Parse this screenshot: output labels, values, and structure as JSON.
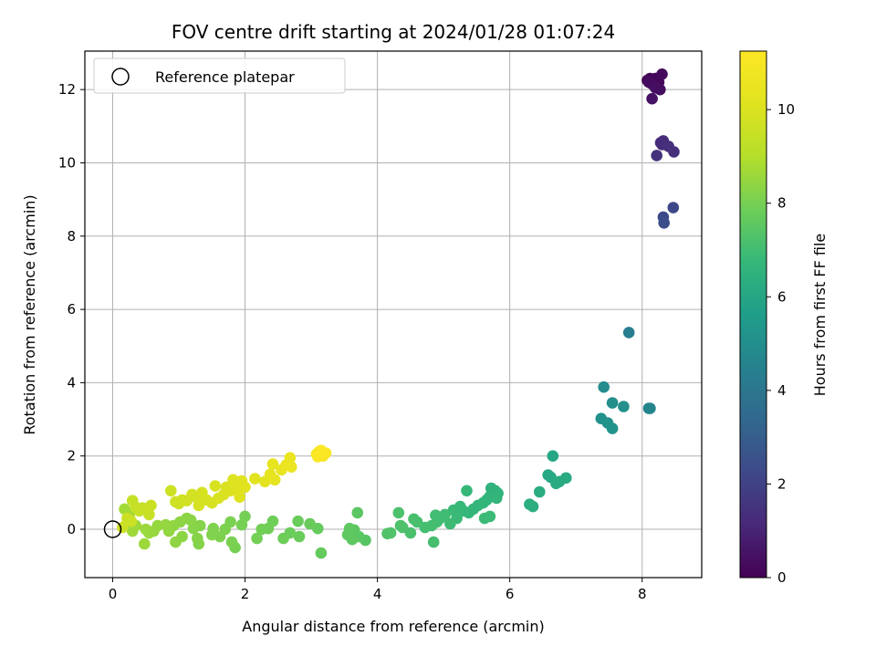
{
  "chart_data": {
    "type": "scatter",
    "title": "FOV centre drift starting at 2024/01/28 01:07:24",
    "xlabel": "Angular distance from reference (arcmin)",
    "ylabel": "Rotation from reference (arcmin)",
    "xlim": [
      -0.42,
      8.9
    ],
    "ylim": [
      -1.32,
      13.05
    ],
    "xticks": [
      0,
      2,
      4,
      6,
      8
    ],
    "yticks": [
      0,
      2,
      4,
      6,
      8,
      10,
      12
    ],
    "grid": true,
    "legend": {
      "placement": "top-left",
      "entries": [
        {
          "label": "Reference platepar",
          "marker": "open-circle"
        }
      ]
    },
    "reference_point": {
      "x": 0,
      "y": 0
    },
    "colorbar": {
      "label": "Hours from first FF file",
      "colormap": "viridis",
      "range": [
        0,
        11.25
      ],
      "ticks": [
        0,
        2,
        4,
        6,
        8,
        10
      ]
    },
    "points": [
      {
        "x": 8.08,
        "y": 12.25,
        "t": 0.0
      },
      {
        "x": 8.12,
        "y": 12.3,
        "t": 0.05
      },
      {
        "x": 8.15,
        "y": 12.15,
        "t": 0.1
      },
      {
        "x": 8.2,
        "y": 12.3,
        "t": 0.15
      },
      {
        "x": 8.25,
        "y": 12.2,
        "t": 0.2
      },
      {
        "x": 8.3,
        "y": 12.42,
        "t": 0.25
      },
      {
        "x": 8.1,
        "y": 12.2,
        "t": 0.3
      },
      {
        "x": 8.27,
        "y": 12.0,
        "t": 0.35
      },
      {
        "x": 8.2,
        "y": 12.05,
        "t": 0.4
      },
      {
        "x": 8.15,
        "y": 11.75,
        "t": 0.5
      },
      {
        "x": 8.28,
        "y": 10.55,
        "t": 1.2
      },
      {
        "x": 8.32,
        "y": 10.6,
        "t": 1.25
      },
      {
        "x": 8.3,
        "y": 10.5,
        "t": 1.3
      },
      {
        "x": 8.4,
        "y": 10.45,
        "t": 1.35
      },
      {
        "x": 8.48,
        "y": 10.3,
        "t": 1.4
      },
      {
        "x": 8.22,
        "y": 10.2,
        "t": 1.45
      },
      {
        "x": 8.47,
        "y": 8.78,
        "t": 2.2
      },
      {
        "x": 8.32,
        "y": 8.52,
        "t": 2.3
      },
      {
        "x": 8.33,
        "y": 8.36,
        "t": 2.4
      },
      {
        "x": 7.8,
        "y": 5.37,
        "t": 4.3
      },
      {
        "x": 8.1,
        "y": 3.3,
        "t": 4.6
      },
      {
        "x": 8.12,
        "y": 3.3,
        "t": 4.62
      },
      {
        "x": 7.42,
        "y": 3.88,
        "t": 4.9
      },
      {
        "x": 7.55,
        "y": 3.45,
        "t": 5.0
      },
      {
        "x": 7.72,
        "y": 3.35,
        "t": 5.05
      },
      {
        "x": 7.38,
        "y": 3.02,
        "t": 5.1
      },
      {
        "x": 7.48,
        "y": 2.9,
        "t": 5.15
      },
      {
        "x": 7.55,
        "y": 2.75,
        "t": 5.2
      },
      {
        "x": 6.65,
        "y": 2.0,
        "t": 6.0
      },
      {
        "x": 6.58,
        "y": 1.48,
        "t": 6.05
      },
      {
        "x": 6.62,
        "y": 1.42,
        "t": 6.08
      },
      {
        "x": 6.75,
        "y": 1.3,
        "t": 6.1
      },
      {
        "x": 6.85,
        "y": 1.4,
        "t": 6.15
      },
      {
        "x": 6.7,
        "y": 1.25,
        "t": 6.2
      },
      {
        "x": 6.45,
        "y": 1.02,
        "t": 6.25
      },
      {
        "x": 6.3,
        "y": 0.68,
        "t": 6.3
      },
      {
        "x": 6.35,
        "y": 0.62,
        "t": 6.35
      },
      {
        "x": 5.72,
        "y": 1.12,
        "t": 6.5
      },
      {
        "x": 5.78,
        "y": 1.05,
        "t": 6.52
      },
      {
        "x": 5.82,
        "y": 0.98,
        "t": 6.55
      },
      {
        "x": 5.7,
        "y": 0.9,
        "t": 6.58
      },
      {
        "x": 5.8,
        "y": 0.85,
        "t": 6.6
      },
      {
        "x": 5.65,
        "y": 0.8,
        "t": 6.62
      },
      {
        "x": 5.6,
        "y": 0.72,
        "t": 6.65
      },
      {
        "x": 5.52,
        "y": 0.65,
        "t": 6.68
      },
      {
        "x": 5.45,
        "y": 0.55,
        "t": 6.7
      },
      {
        "x": 5.38,
        "y": 0.45,
        "t": 6.72
      },
      {
        "x": 5.3,
        "y": 0.5,
        "t": 6.75
      },
      {
        "x": 5.35,
        "y": 1.05,
        "t": 6.77
      },
      {
        "x": 5.25,
        "y": 0.62,
        "t": 6.8
      },
      {
        "x": 5.15,
        "y": 0.52,
        "t": 6.82
      },
      {
        "x": 5.2,
        "y": 0.3,
        "t": 6.85
      },
      {
        "x": 5.62,
        "y": 0.3,
        "t": 6.87
      },
      {
        "x": 5.7,
        "y": 0.35,
        "t": 6.9
      },
      {
        "x": 5.1,
        "y": 0.15,
        "t": 6.92
      },
      {
        "x": 5.02,
        "y": 0.4,
        "t": 6.95
      },
      {
        "x": 4.95,
        "y": 0.3,
        "t": 6.97
      },
      {
        "x": 4.88,
        "y": 0.38,
        "t": 7.0
      },
      {
        "x": 4.9,
        "y": 0.2,
        "t": 7.02
      },
      {
        "x": 4.82,
        "y": 0.1,
        "t": 7.05
      },
      {
        "x": 4.72,
        "y": 0.05,
        "t": 7.08
      },
      {
        "x": 4.85,
        "y": -0.35,
        "t": 7.1
      },
      {
        "x": 4.6,
        "y": 0.2,
        "t": 7.12
      },
      {
        "x": 4.55,
        "y": 0.28,
        "t": 7.15
      },
      {
        "x": 4.5,
        "y": -0.1,
        "t": 7.18
      },
      {
        "x": 4.38,
        "y": 0.05,
        "t": 7.2
      },
      {
        "x": 4.32,
        "y": 0.45,
        "t": 7.22
      },
      {
        "x": 4.35,
        "y": 0.1,
        "t": 7.25
      },
      {
        "x": 4.2,
        "y": -0.1,
        "t": 7.28
      },
      {
        "x": 4.15,
        "y": -0.12,
        "t": 7.3
      },
      {
        "x": 3.82,
        "y": -0.3,
        "t": 7.45
      },
      {
        "x": 3.72,
        "y": -0.2,
        "t": 7.48
      },
      {
        "x": 3.7,
        "y": 0.45,
        "t": 7.5
      },
      {
        "x": 3.65,
        "y": -0.02,
        "t": 7.52
      },
      {
        "x": 3.62,
        "y": -0.28,
        "t": 7.55
      },
      {
        "x": 3.58,
        "y": 0.02,
        "t": 7.58
      },
      {
        "x": 3.55,
        "y": -0.15,
        "t": 7.6
      },
      {
        "x": 3.15,
        "y": -0.65,
        "t": 7.7
      },
      {
        "x": 3.1,
        "y": 0.02,
        "t": 7.72
      },
      {
        "x": 2.98,
        "y": 0.15,
        "t": 7.75
      },
      {
        "x": 2.8,
        "y": 0.22,
        "t": 7.78
      },
      {
        "x": 2.82,
        "y": -0.2,
        "t": 7.8
      },
      {
        "x": 2.68,
        "y": -0.1,
        "t": 7.82
      },
      {
        "x": 2.58,
        "y": -0.25,
        "t": 7.85
      },
      {
        "x": 2.42,
        "y": 0.22,
        "t": 7.88
      },
      {
        "x": 2.35,
        "y": 0.02,
        "t": 7.9
      },
      {
        "x": 2.25,
        "y": 0.0,
        "t": 7.92
      },
      {
        "x": 2.18,
        "y": -0.25,
        "t": 7.95
      },
      {
        "x": 2.0,
        "y": 0.35,
        "t": 7.98
      },
      {
        "x": 1.95,
        "y": 0.12,
        "t": 8.0
      },
      {
        "x": 1.85,
        "y": -0.5,
        "t": 8.02
      },
      {
        "x": 1.8,
        "y": -0.35,
        "t": 8.05
      },
      {
        "x": 1.78,
        "y": 0.2,
        "t": 8.08
      },
      {
        "x": 1.7,
        "y": 0.0,
        "t": 8.1
      },
      {
        "x": 1.62,
        "y": -0.2,
        "t": 8.12
      },
      {
        "x": 1.52,
        "y": 0.02,
        "t": 8.15
      },
      {
        "x": 1.5,
        "y": -0.15,
        "t": 8.18
      },
      {
        "x": 1.32,
        "y": 0.1,
        "t": 8.2
      },
      {
        "x": 1.3,
        "y": -0.4,
        "t": 8.22
      },
      {
        "x": 1.28,
        "y": -0.25,
        "t": 8.25
      },
      {
        "x": 1.22,
        "y": 0.02,
        "t": 8.28
      },
      {
        "x": 1.18,
        "y": 0.25,
        "t": 8.3
      },
      {
        "x": 1.12,
        "y": 0.3,
        "t": 8.32
      },
      {
        "x": 1.05,
        "y": -0.2,
        "t": 8.35
      },
      {
        "x": 1.02,
        "y": 0.2,
        "t": 8.38
      },
      {
        "x": 0.95,
        "y": -0.35,
        "t": 8.4
      },
      {
        "x": 0.92,
        "y": 0.1,
        "t": 8.42
      },
      {
        "x": 0.85,
        "y": -0.05,
        "t": 8.45
      },
      {
        "x": 0.8,
        "y": 0.12,
        "t": 8.48
      },
      {
        "x": 0.68,
        "y": 0.1,
        "t": 8.5
      },
      {
        "x": 0.62,
        "y": -0.05,
        "t": 8.52
      },
      {
        "x": 0.55,
        "y": -0.1,
        "t": 8.55
      },
      {
        "x": 0.5,
        "y": 0.0,
        "t": 8.58
      },
      {
        "x": 0.48,
        "y": -0.4,
        "t": 8.6
      },
      {
        "x": 0.35,
        "y": 0.1,
        "t": 8.62
      },
      {
        "x": 0.3,
        "y": -0.05,
        "t": 8.65
      },
      {
        "x": 0.22,
        "y": 0.15,
        "t": 8.68
      },
      {
        "x": 0.18,
        "y": 0.55,
        "t": 8.7
      },
      {
        "x": 0.25,
        "y": 0.4,
        "t": 8.72
      },
      {
        "x": 0.3,
        "y": 0.78,
        "t": 9.4
      },
      {
        "x": 0.35,
        "y": 0.6,
        "t": 9.42
      },
      {
        "x": 0.4,
        "y": 0.5,
        "t": 9.45
      },
      {
        "x": 0.45,
        "y": 0.58,
        "t": 9.48
      },
      {
        "x": 0.55,
        "y": 0.4,
        "t": 9.5
      },
      {
        "x": 0.58,
        "y": 0.65,
        "t": 9.52
      },
      {
        "x": 0.22,
        "y": 0.3,
        "t": 9.55
      },
      {
        "x": 0.28,
        "y": 0.22,
        "t": 9.58
      },
      {
        "x": 0.15,
        "y": 0.05,
        "t": 9.6
      },
      {
        "x": 0.88,
        "y": 1.05,
        "t": 9.62
      },
      {
        "x": 0.95,
        "y": 0.75,
        "t": 9.65
      },
      {
        "x": 1.0,
        "y": 0.7,
        "t": 9.68
      },
      {
        "x": 1.05,
        "y": 0.8,
        "t": 9.7
      },
      {
        "x": 1.12,
        "y": 0.78,
        "t": 9.72
      },
      {
        "x": 1.2,
        "y": 0.95,
        "t": 9.75
      },
      {
        "x": 1.28,
        "y": 0.85,
        "t": 9.78
      },
      {
        "x": 1.35,
        "y": 1.0,
        "t": 9.8
      },
      {
        "x": 1.3,
        "y": 0.65,
        "t": 9.82
      },
      {
        "x": 1.42,
        "y": 0.8,
        "t": 9.85
      },
      {
        "x": 1.5,
        "y": 0.72,
        "t": 9.88
      },
      {
        "x": 1.55,
        "y": 1.18,
        "t": 9.9
      },
      {
        "x": 1.6,
        "y": 0.85,
        "t": 9.92
      },
      {
        "x": 1.68,
        "y": 0.95,
        "t": 9.95
      },
      {
        "x": 1.72,
        "y": 1.15,
        "t": 9.98
      },
      {
        "x": 1.78,
        "y": 1.05,
        "t": 10.0
      },
      {
        "x": 1.82,
        "y": 1.35,
        "t": 10.02
      },
      {
        "x": 1.85,
        "y": 1.25,
        "t": 10.05
      },
      {
        "x": 1.9,
        "y": 1.1,
        "t": 10.08
      },
      {
        "x": 1.92,
        "y": 0.88,
        "t": 10.1
      },
      {
        "x": 1.95,
        "y": 1.32,
        "t": 10.12
      },
      {
        "x": 2.0,
        "y": 1.15,
        "t": 10.15
      },
      {
        "x": 2.15,
        "y": 1.38,
        "t": 10.2
      },
      {
        "x": 2.3,
        "y": 1.3,
        "t": 10.25
      },
      {
        "x": 2.38,
        "y": 1.5,
        "t": 10.3
      },
      {
        "x": 2.45,
        "y": 1.35,
        "t": 10.35
      },
      {
        "x": 2.42,
        "y": 1.78,
        "t": 10.4
      },
      {
        "x": 2.55,
        "y": 1.62,
        "t": 10.45
      },
      {
        "x": 2.62,
        "y": 1.75,
        "t": 10.5
      },
      {
        "x": 2.68,
        "y": 1.95,
        "t": 10.55
      },
      {
        "x": 2.7,
        "y": 1.7,
        "t": 10.6
      },
      {
        "x": 3.08,
        "y": 2.05,
        "t": 10.9
      },
      {
        "x": 3.12,
        "y": 2.12,
        "t": 10.95
      },
      {
        "x": 3.18,
        "y": 2.0,
        "t": 11.0
      },
      {
        "x": 3.22,
        "y": 2.08,
        "t": 11.1
      },
      {
        "x": 3.1,
        "y": 1.98,
        "t": 11.15
      },
      {
        "x": 3.15,
        "y": 2.15,
        "t": 11.2
      }
    ]
  }
}
